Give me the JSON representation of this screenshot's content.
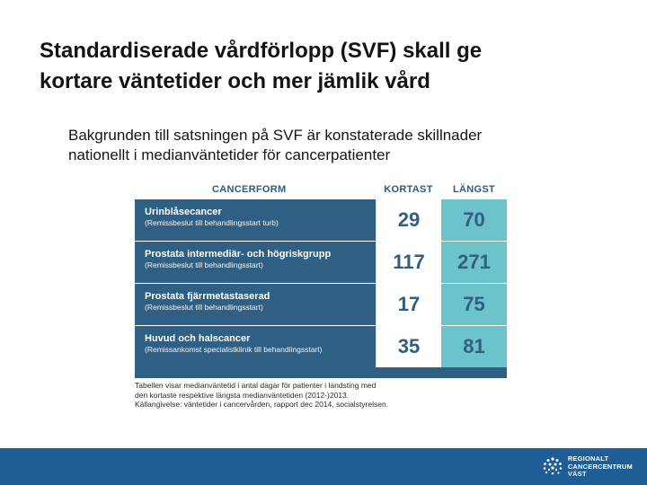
{
  "title": {
    "line1": "Standardiserade vårdförlopp (SVF) skall ge",
    "line2": "kortare väntetider och mer jämlik vård"
  },
  "subtitle": {
    "line1": "Bakgrunden till satsningen på SVF är konstaterade skillnader",
    "line2": "nationellt i medianväntetider för cancerpatienter"
  },
  "table": {
    "headers": {
      "form": "CANCERFORM",
      "short": "KORTAST",
      "long": "LÄNGST"
    },
    "rows": [
      {
        "name": "Urinblåsecancer",
        "sub": "(Remissbeslut till behandlingsstart turb)",
        "short": "29",
        "long": "70"
      },
      {
        "name": "Prostata intermediär- och högriskgrupp",
        "sub": "(Remissbeslut till behandlingsstart)",
        "short": "117",
        "long": "271"
      },
      {
        "name": "Prostata fjärrmetastaserad",
        "sub": "(Remissbeslut till behandlingsstart)",
        "short": "17",
        "long": "75"
      },
      {
        "name": "Huvud och halscancer",
        "sub": "(Remissankomst specialistklinik till behandlingsstart)",
        "short": "35",
        "long": "81"
      }
    ]
  },
  "caption": {
    "line1": "Tabellen visar medianväntetid i antal dagar för patienter i landsting med",
    "line2": "den kortaste respektive längsta medianväntetiden (2012-)2013.",
    "line3": "Källangivelse: väntetider i cancervården, rapport dec 2014, socialstyrelsen."
  },
  "logo": {
    "line1": "REGIONALT",
    "line2": "CANCERCENTRUM",
    "line3": "VÄST",
    "icon": "rcc-logo-icon"
  },
  "colors": {
    "footer": "#1f5d96",
    "table_dark": "#2f5f82",
    "table_accent": "#6cc3cb"
  }
}
